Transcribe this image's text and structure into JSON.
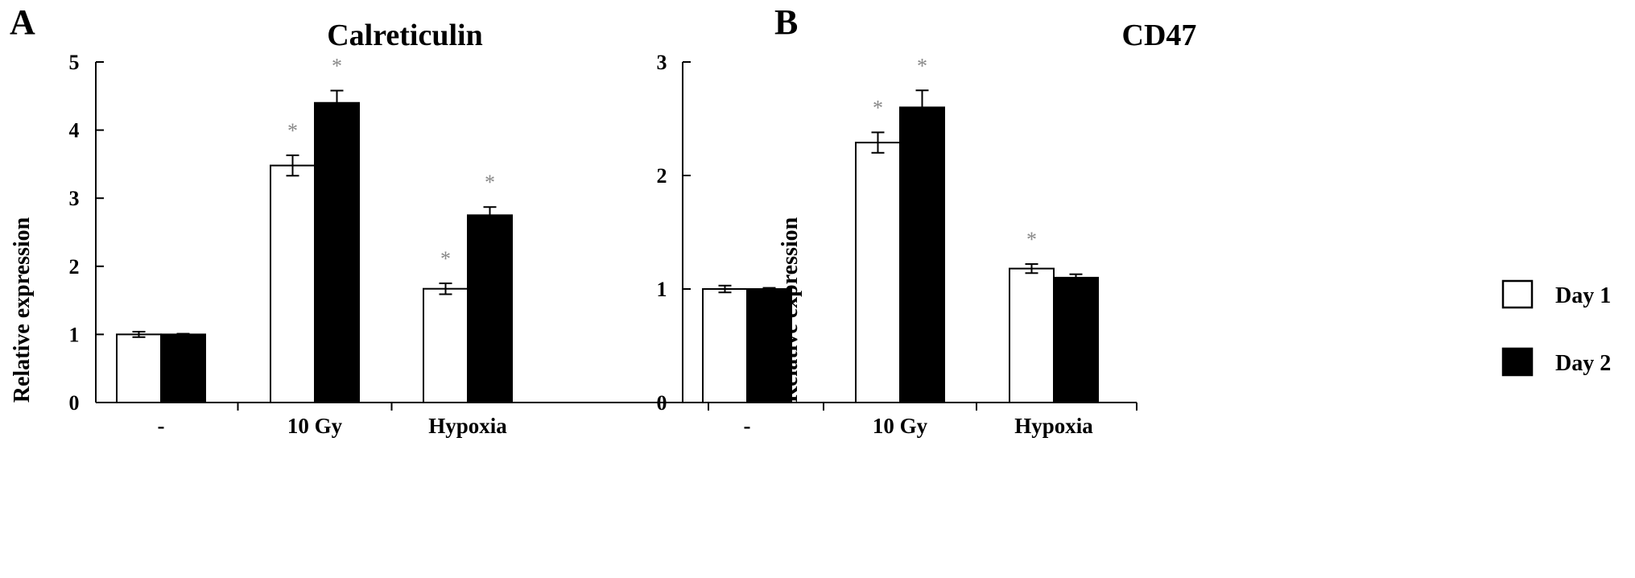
{
  "legend": {
    "items": [
      {
        "label": "Day 1",
        "color": "#ffffff"
      },
      {
        "label": "Day 2",
        "color": "#000000"
      }
    ]
  },
  "chart_data": [
    {
      "panel": "A",
      "type": "bar",
      "title": "Calreticulin",
      "ylabel": "Relative expression",
      "xlabel": "",
      "ylim": [
        0,
        5
      ],
      "yticks": [
        "0",
        "1",
        "2",
        "3",
        "4",
        "5"
      ],
      "categories": [
        "-",
        "10 Gy",
        "Hypoxia"
      ],
      "series": [
        {
          "name": "Day 1",
          "color": "#ffffff",
          "values": [
            1.0,
            3.48,
            1.67
          ],
          "errors": [
            0.04,
            0.15,
            0.08
          ],
          "significant": [
            false,
            true,
            true
          ]
        },
        {
          "name": "Day 2",
          "color": "#000000",
          "values": [
            1.0,
            4.4,
            2.75
          ],
          "errors": [
            0.01,
            0.18,
            0.12
          ],
          "significant": [
            false,
            true,
            true
          ]
        }
      ],
      "annotation_symbol": "*"
    },
    {
      "panel": "B",
      "type": "bar",
      "title": "CD47",
      "ylabel": "Relative expression",
      "xlabel": "",
      "ylim": [
        0,
        3
      ],
      "yticks": [
        "0",
        "1",
        "2",
        "3"
      ],
      "categories": [
        "-",
        "10 Gy",
        "Hypoxia"
      ],
      "series": [
        {
          "name": "Day 1",
          "color": "#ffffff",
          "values": [
            1.0,
            2.29,
            1.18
          ],
          "errors": [
            0.03,
            0.09,
            0.04
          ],
          "significant": [
            false,
            true,
            true
          ]
        },
        {
          "name": "Day 2",
          "color": "#000000",
          "values": [
            1.0,
            2.6,
            1.1
          ],
          "errors": [
            0.01,
            0.15,
            0.03
          ],
          "significant": [
            false,
            true,
            false
          ]
        }
      ],
      "annotation_symbol": "*"
    }
  ]
}
